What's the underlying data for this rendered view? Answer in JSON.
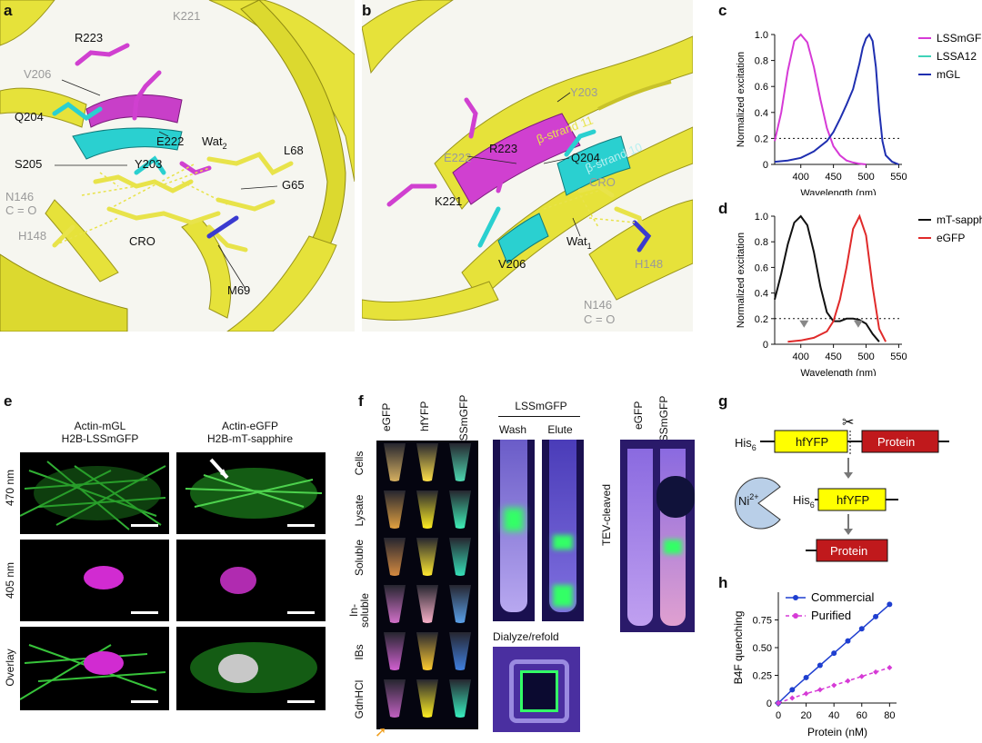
{
  "panels": {
    "a": {
      "letter": "a",
      "residues": [
        "K221",
        "R223",
        "V206",
        "Q204",
        "E222",
        "Wat",
        "2",
        "L68",
        "S205",
        "Y203",
        "G65",
        "N146",
        "C = O",
        "H148",
        "CRO",
        "M69"
      ]
    },
    "b": {
      "letter": "b",
      "strand11": "β-strand 11",
      "strand10": "β-strand 10",
      "residues": [
        "Y203",
        "E222",
        "R223",
        "Q204",
        "CRO",
        "K221",
        "Wat",
        "1",
        "V206",
        "H148",
        "N146",
        "C = O"
      ]
    },
    "c": {
      "letter": "c",
      "chart_data": {
        "type": "line",
        "xlabel": "Wavelength (nm)",
        "ylabel": "Normalized excitation",
        "xlim": [
          360,
          555
        ],
        "ylim": [
          0,
          1.0
        ],
        "xticks": [
          "400",
          "450",
          "500",
          "550"
        ],
        "yticks": [
          "0",
          "0.2",
          "0.4",
          "0.6",
          "0.8",
          "1.0"
        ],
        "threshold": 0.2,
        "legend_position": "top-right",
        "series": [
          {
            "name": "LSSmGFP",
            "color": "#d63ad6",
            "x": [
              360,
              370,
              380,
              390,
              400,
              410,
              420,
              430,
              440,
              450,
              460,
              470,
              480,
              490,
              500
            ],
            "y": [
              0.18,
              0.4,
              0.72,
              0.95,
              1.0,
              0.94,
              0.75,
              0.5,
              0.28,
              0.14,
              0.07,
              0.03,
              0.015,
              0.005,
              0.0
            ]
          },
          {
            "name": "LSSA12",
            "color": "#3fd3b8",
            "x": [],
            "y": []
          },
          {
            "name": "mGL",
            "color": "#1f2fb0",
            "x": [
              360,
              380,
              400,
              420,
              440,
              450,
              460,
              470,
              480,
              490,
              495,
              500,
              505,
              510,
              515,
              520,
              525,
              530,
              540,
              550
            ],
            "y": [
              0.02,
              0.03,
              0.05,
              0.1,
              0.18,
              0.25,
              0.35,
              0.46,
              0.58,
              0.78,
              0.9,
              0.97,
              1.0,
              0.95,
              0.75,
              0.42,
              0.18,
              0.07,
              0.02,
              0.0
            ]
          }
        ]
      }
    },
    "d": {
      "letter": "d",
      "chart_data": {
        "type": "line",
        "xlabel": "Wavelength (nm)",
        "ylabel": "Normalized excitation",
        "xlim": [
          360,
          555
        ],
        "ylim": [
          0,
          1.0
        ],
        "xticks": [
          "400",
          "450",
          "500",
          "550"
        ],
        "yticks": [
          "0",
          "0.2",
          "0.4",
          "0.6",
          "0.8",
          "1.0"
        ],
        "threshold": 0.2,
        "markers": [
          405,
          488
        ],
        "legend_position": "top-right",
        "series": [
          {
            "name": "mT-sapphire",
            "color": "#111111",
            "x": [
              360,
              370,
              380,
              390,
              400,
              410,
              420,
              430,
              440,
              450,
              460,
              470,
              480,
              490,
              500,
              510,
              520
            ],
            "y": [
              0.35,
              0.55,
              0.78,
              0.95,
              1.0,
              0.93,
              0.72,
              0.45,
              0.25,
              0.18,
              0.18,
              0.2,
              0.2,
              0.19,
              0.16,
              0.08,
              0.02
            ]
          },
          {
            "name": "eGFP",
            "color": "#e02a2a",
            "x": [
              380,
              400,
              420,
              440,
              450,
              460,
              470,
              480,
              490,
              500,
              510,
              520,
              530
            ],
            "y": [
              0.02,
              0.03,
              0.05,
              0.1,
              0.18,
              0.35,
              0.6,
              0.9,
              1.0,
              0.85,
              0.45,
              0.12,
              0.02
            ]
          }
        ]
      }
    },
    "e": {
      "letter": "e",
      "col1": [
        "Actin-mGL",
        "H2B-LSSmGFP"
      ],
      "col2": [
        "Actin-eGFP",
        "H2B-mT-sapphire"
      ],
      "rows": [
        "470 nm",
        "405 nm",
        "Overlay"
      ]
    },
    "f": {
      "letter": "f",
      "columns": [
        "eGFP",
        "hfYFP",
        "LSSmGFP"
      ],
      "rows": [
        "Cells",
        "Lysate",
        "Soluble",
        "In-\nsoluble",
        "IBs",
        "GdnHCl"
      ],
      "group_label": "LSSmGFP",
      "wash": "Wash",
      "elute": "Elute",
      "dialyze": "Dialyze/refold",
      "tev_cols": [
        "eGFP",
        "LSSmGFP"
      ],
      "tev": "TEV-cleaved"
    },
    "g": {
      "letter": "g",
      "his": "His",
      "his_sub": "6",
      "hfyfp": "hfYFP",
      "protein": "Protein",
      "ni": "Ni",
      "ni_sup": "2+",
      "colors": {
        "yellow": "#ffff00",
        "red": "#c0191c",
        "pacman": "#b9cfe8"
      }
    },
    "h": {
      "letter": "h",
      "chart_data": {
        "type": "line",
        "xlabel": "Protein (nM)",
        "ylabel": "B4F quenching",
        "xlim": [
          0,
          85
        ],
        "ylim": [
          0,
          1.0
        ],
        "xticks": [
          "0",
          "20",
          "40",
          "60",
          "80"
        ],
        "yticks": [
          "0",
          "0.25",
          "0.50",
          "0.75"
        ],
        "legend_position": "top-left",
        "series": [
          {
            "name": "Commercial",
            "color": "#1f3fd0",
            "x": [
              0,
              10,
              20,
              30,
              40,
              50,
              60,
              70,
              80
            ],
            "y": [
              0,
              0.12,
              0.23,
              0.34,
              0.45,
              0.56,
              0.67,
              0.78,
              0.89
            ]
          },
          {
            "name": "Purified",
            "color": "#d63ad6",
            "x": [
              0,
              10,
              20,
              30,
              40,
              50,
              60,
              70,
              80
            ],
            "y": [
              0,
              0.045,
              0.085,
              0.12,
              0.16,
              0.2,
              0.24,
              0.28,
              0.32
            ]
          }
        ]
      }
    }
  }
}
